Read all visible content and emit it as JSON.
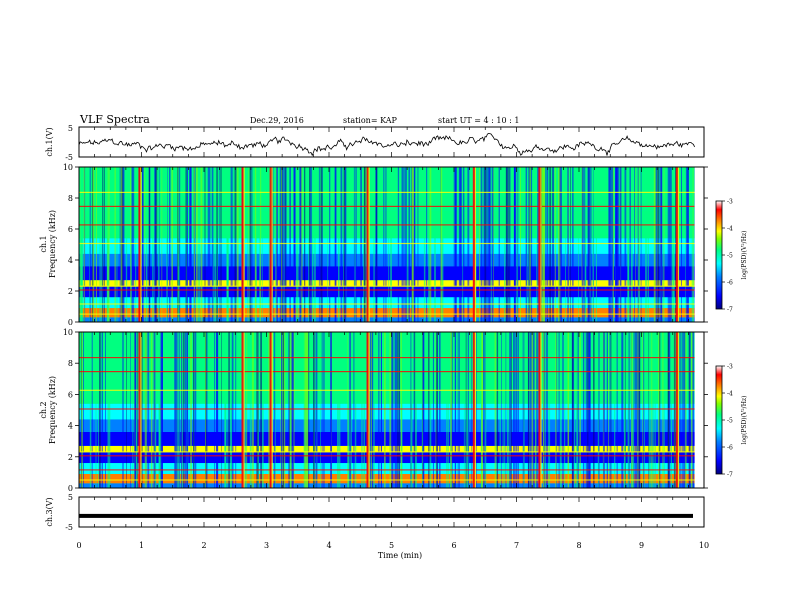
{
  "header": {
    "title": "VLF Spectra",
    "date": "Dec.29, 2016",
    "station": "station= KAP",
    "start_ut": "start  UT =   4 : 10 : 1"
  },
  "colors": {
    "spectrogram_scale": [
      "#000080",
      "#0000ff",
      "#0080ff",
      "#00ffff",
      "#00ff80",
      "#80ff00",
      "#ffff00",
      "#ff8000",
      "#ff0000",
      "#ffffff"
    ]
  },
  "chart_data": [
    {
      "type": "line",
      "panel": "ch1-waveform",
      "ylabel": "ch.1(V)",
      "ylim": [
        -5,
        5
      ],
      "yticks": [
        "5",
        "-5"
      ],
      "xlim": [
        0,
        10
      ],
      "note": "noisy waveform fluctuating around about -1 V"
    },
    {
      "type": "heatmap",
      "panel": "ch1-spectrogram",
      "ylabel": "ch.1\nFrequency (kHz)",
      "ylim": [
        0,
        10
      ],
      "yticks": [
        "0",
        "2",
        "4",
        "6",
        "8",
        "10"
      ],
      "xlim": [
        0,
        10
      ],
      "colorbar": {
        "label": "log(PSD)(V²/Hz)",
        "range": [
          -7,
          -3
        ],
        "ticks": [
          "-3",
          "-4",
          "-5",
          "-6",
          "-7"
        ]
      },
      "strong_impulses_min": [
        0.95,
        2.6,
        3.05,
        4.6,
        6.3,
        7.35,
        9.55
      ]
    },
    {
      "type": "heatmap",
      "panel": "ch2-spectrogram",
      "ylabel": "ch.2\nFrequency (kHz)",
      "ylim": [
        0,
        10
      ],
      "yticks": [
        "0",
        "2",
        "4",
        "6",
        "8",
        "10"
      ],
      "xlim": [
        0,
        10
      ],
      "colorbar": {
        "label": "log(PSD)(V²/Hz)",
        "range": [
          -7,
          -3
        ],
        "ticks": [
          "-3",
          "-4",
          "-5",
          "-6",
          "-7"
        ]
      },
      "strong_impulses_min": [
        0.95,
        2.6,
        3.05,
        4.6,
        6.3,
        7.35,
        9.55
      ]
    },
    {
      "type": "line",
      "panel": "ch3-waveform",
      "ylabel": "ch.3(V)",
      "ylim": [
        -5,
        5
      ],
      "yticks": [
        "5",
        "-5"
      ],
      "xlim": [
        0,
        10
      ],
      "values_note": "flat constant signal",
      "constant_value": -1.3
    }
  ],
  "x_axis": {
    "label": "Time  (min)",
    "ticks": [
      "0",
      "1",
      "2",
      "3",
      "4",
      "5",
      "6",
      "7",
      "8",
      "9",
      "10"
    ]
  }
}
